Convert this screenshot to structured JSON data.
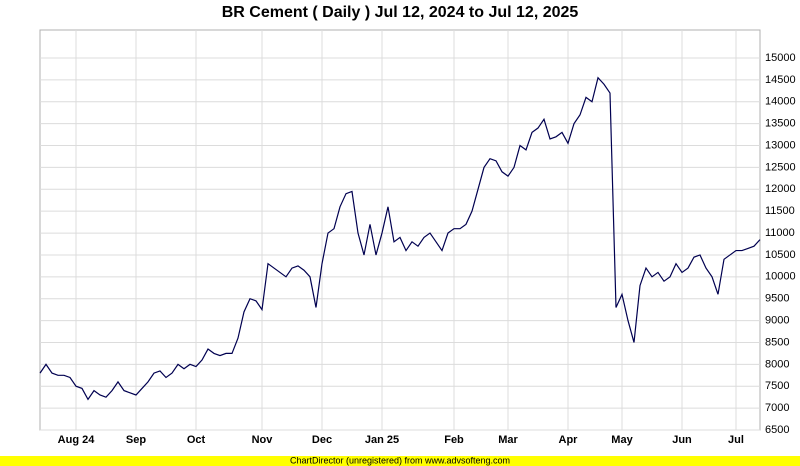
{
  "chart_data": {
    "type": "line",
    "title": "BR Cement ( Daily ) Jul 12, 2024 to Jul 12, 2025",
    "footer": "ChartDirector (unregistered) from www.advsofteng.com",
    "categories": [
      null,
      null,
      null,
      null,
      null,
      null,
      "Aug 24",
      null,
      null,
      null,
      null,
      null,
      null,
      null,
      null,
      null,
      "Sep",
      null,
      null,
      null,
      null,
      null,
      null,
      null,
      null,
      null,
      "Oct",
      null,
      null,
      null,
      null,
      null,
      null,
      null,
      null,
      null,
      null,
      "Nov",
      null,
      null,
      null,
      null,
      null,
      null,
      null,
      null,
      null,
      "Dec",
      null,
      null,
      null,
      null,
      null,
      null,
      null,
      null,
      null,
      "Jan 25",
      null,
      null,
      null,
      null,
      null,
      null,
      null,
      null,
      null,
      null,
      null,
      "Feb",
      null,
      null,
      null,
      null,
      null,
      null,
      null,
      null,
      "Mar",
      null,
      null,
      null,
      null,
      null,
      null,
      null,
      null,
      null,
      "Apr",
      null,
      null,
      null,
      null,
      null,
      null,
      null,
      null,
      "May",
      null,
      null,
      null,
      null,
      null,
      null,
      null,
      null,
      null,
      "Jun",
      null,
      null,
      null,
      null,
      null,
      null,
      null,
      null,
      "Jul",
      null,
      null,
      null,
      null
    ],
    "series": [
      {
        "color": "#000050",
        "values": [
          7800,
          8000,
          7800,
          7750,
          7750,
          7700,
          7500,
          7450,
          7200,
          7400,
          7300,
          7250,
          7400,
          7600,
          7400,
          7350,
          7300,
          7450,
          7600,
          7800,
          7850,
          7700,
          7800,
          8000,
          7900,
          8000,
          7950,
          8100,
          8350,
          8250,
          8200,
          8250,
          8250,
          8600,
          9200,
          9500,
          9450,
          9250,
          10300,
          10200,
          10100,
          10000,
          10200,
          10250,
          10150,
          10000,
          9300,
          10300,
          11000,
          11100,
          11600,
          11900,
          11950,
          11000,
          10500,
          11200,
          10500,
          11000,
          11600,
          10800,
          10900,
          10600,
          10800,
          10700,
          10900,
          11000,
          10800,
          10600,
          11000,
          11100,
          11100,
          11200,
          11500,
          12000,
          12500,
          12700,
          12650,
          12400,
          12300,
          12500,
          13000,
          12900,
          13300,
          13400,
          13600,
          13150,
          13200,
          13300,
          13050,
          13500,
          13700,
          14100,
          14000,
          14550,
          14400,
          14200,
          9300,
          9600,
          9000,
          8500,
          9800,
          10200,
          10000,
          10100,
          9900,
          10000,
          10300,
          10100,
          10200,
          10450,
          10500,
          10200,
          10000,
          9600,
          10400,
          10500,
          10600,
          10600,
          10650,
          10700,
          10850
        ]
      }
    ],
    "ylim": [
      6500,
      15640
    ],
    "yticks": [
      6500,
      7000,
      7500,
      8000,
      8500,
      9000,
      9500,
      10000,
      10500,
      11000,
      11500,
      12000,
      12500,
      13000,
      13500,
      14000,
      14500,
      15000
    ],
    "grid": true
  }
}
